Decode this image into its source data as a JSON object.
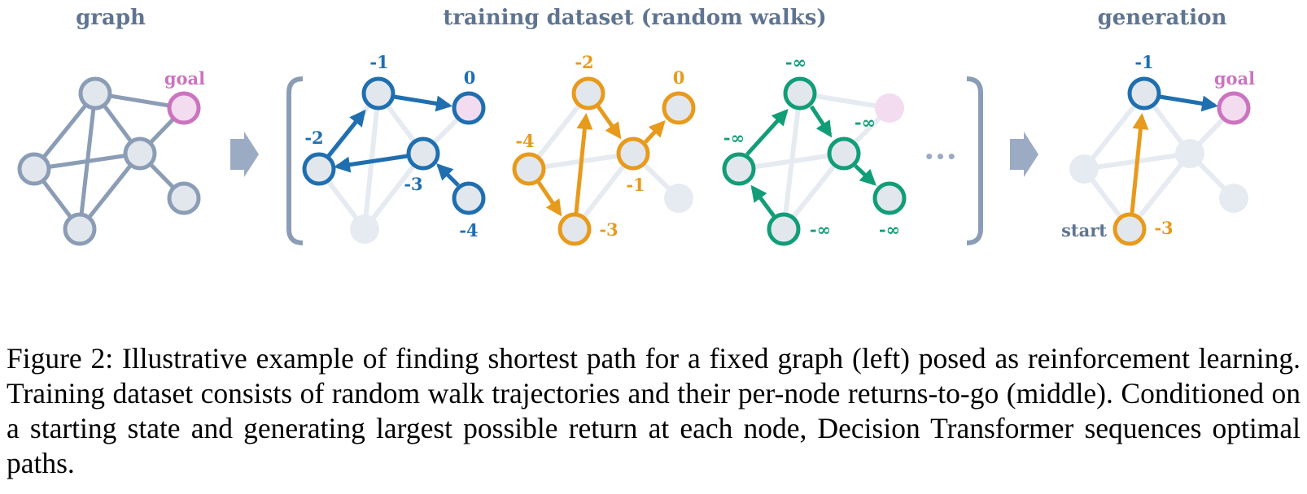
{
  "colors": {
    "slate": "#8b9db5",
    "slate_text": "#5f7491",
    "faint_edge": "#e6ebf1",
    "node_fill": "#e2e7ed",
    "goal": "#cc73c0",
    "goal_fill": "#f3dcef",
    "blue": "#1f6fb0",
    "orange": "#e89a1c",
    "green": "#119d78",
    "black": "#000000"
  },
  "panels": {
    "graph_title": "graph",
    "training_title": "training dataset (random walks)",
    "generation_title": "generation"
  },
  "labels": {
    "goal_left": "goal",
    "goal_right": "goal",
    "start": "start",
    "ellipsis": "•••",
    "blue_a": "-1",
    "blue_b": "0",
    "blue_c": "-2",
    "blue_d": "-3",
    "blue_e": "-4",
    "orange_a": "-2",
    "orange_b": "0",
    "orange_c": "-4",
    "orange_d": "-1",
    "orange_e": "-3",
    "green_a": "-∞",
    "green_b": "-∞",
    "green_c": "-∞",
    "green_d": "-∞",
    "green_e": "-∞",
    "gen_a": "-1",
    "gen_b": "-3"
  },
  "caption": "Figure 2:  Illustrative example of finding shortest path for a fixed graph (left) posed as reinforcement learning.  Training dataset consists of random walk trajectories and their per-node returns-to-go (middle). Conditioned on a starting state and generating largest possible return at each node, Decision Transformer sequences optimal paths."
}
